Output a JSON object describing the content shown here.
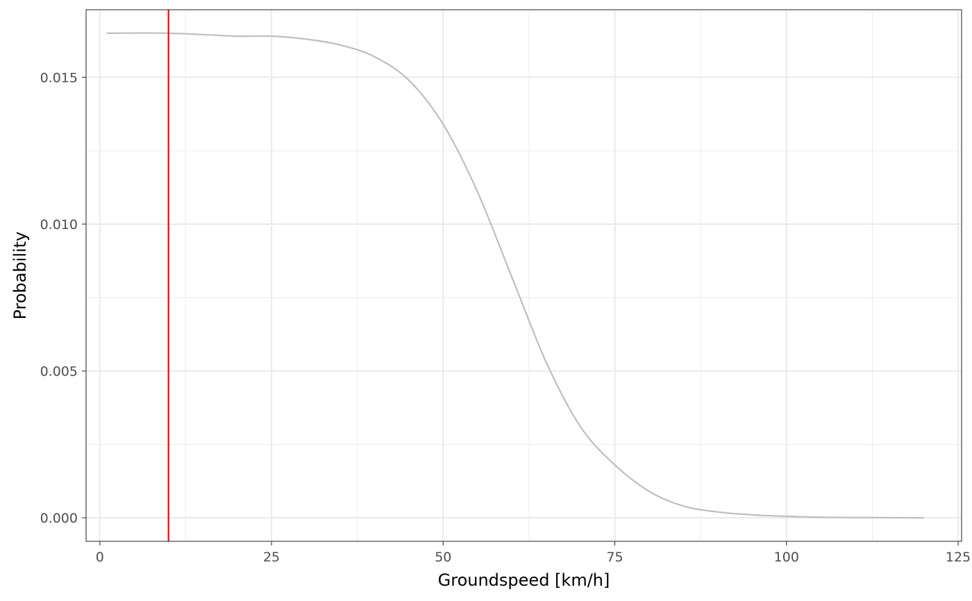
{
  "chart_data": {
    "type": "line",
    "title": "",
    "xlabel": "Groundspeed [km/h]",
    "ylabel": "Probability",
    "xlim": [
      -2,
      125.5
    ],
    "ylim": [
      -0.0008,
      0.0173
    ],
    "x_ticks": [
      0,
      25,
      50,
      75,
      100,
      125
    ],
    "x_tick_labels": [
      "0",
      "25",
      "50",
      "75",
      "100",
      "125"
    ],
    "y_ticks": [
      0.0,
      0.005,
      0.01,
      0.015
    ],
    "y_tick_labels": [
      "0.000",
      "0.005",
      "0.010",
      "0.015"
    ],
    "grid": true,
    "legend": "none",
    "series": [
      {
        "color": "#bebebe",
        "x": [
          1,
          10,
          20,
          25,
          30,
          35,
          40,
          45,
          50,
          55,
          60,
          65,
          70,
          75,
          80,
          85,
          90,
          95,
          100,
          105,
          110,
          115,
          120
        ],
        "y": [
          0.0165,
          0.0165,
          0.0164,
          0.0164,
          0.0163,
          0.0161,
          0.0157,
          0.0149,
          0.0134,
          0.0111,
          0.0082,
          0.0053,
          0.0031,
          0.0018,
          0.0009,
          0.0004,
          0.0002,
          0.0001,
          5e-05,
          2e-05,
          1e-05,
          5e-06,
          0.0
        ]
      }
    ],
    "reference_lines": [
      {
        "orientation": "vertical",
        "x": 10,
        "color": "#ff0000"
      }
    ]
  }
}
